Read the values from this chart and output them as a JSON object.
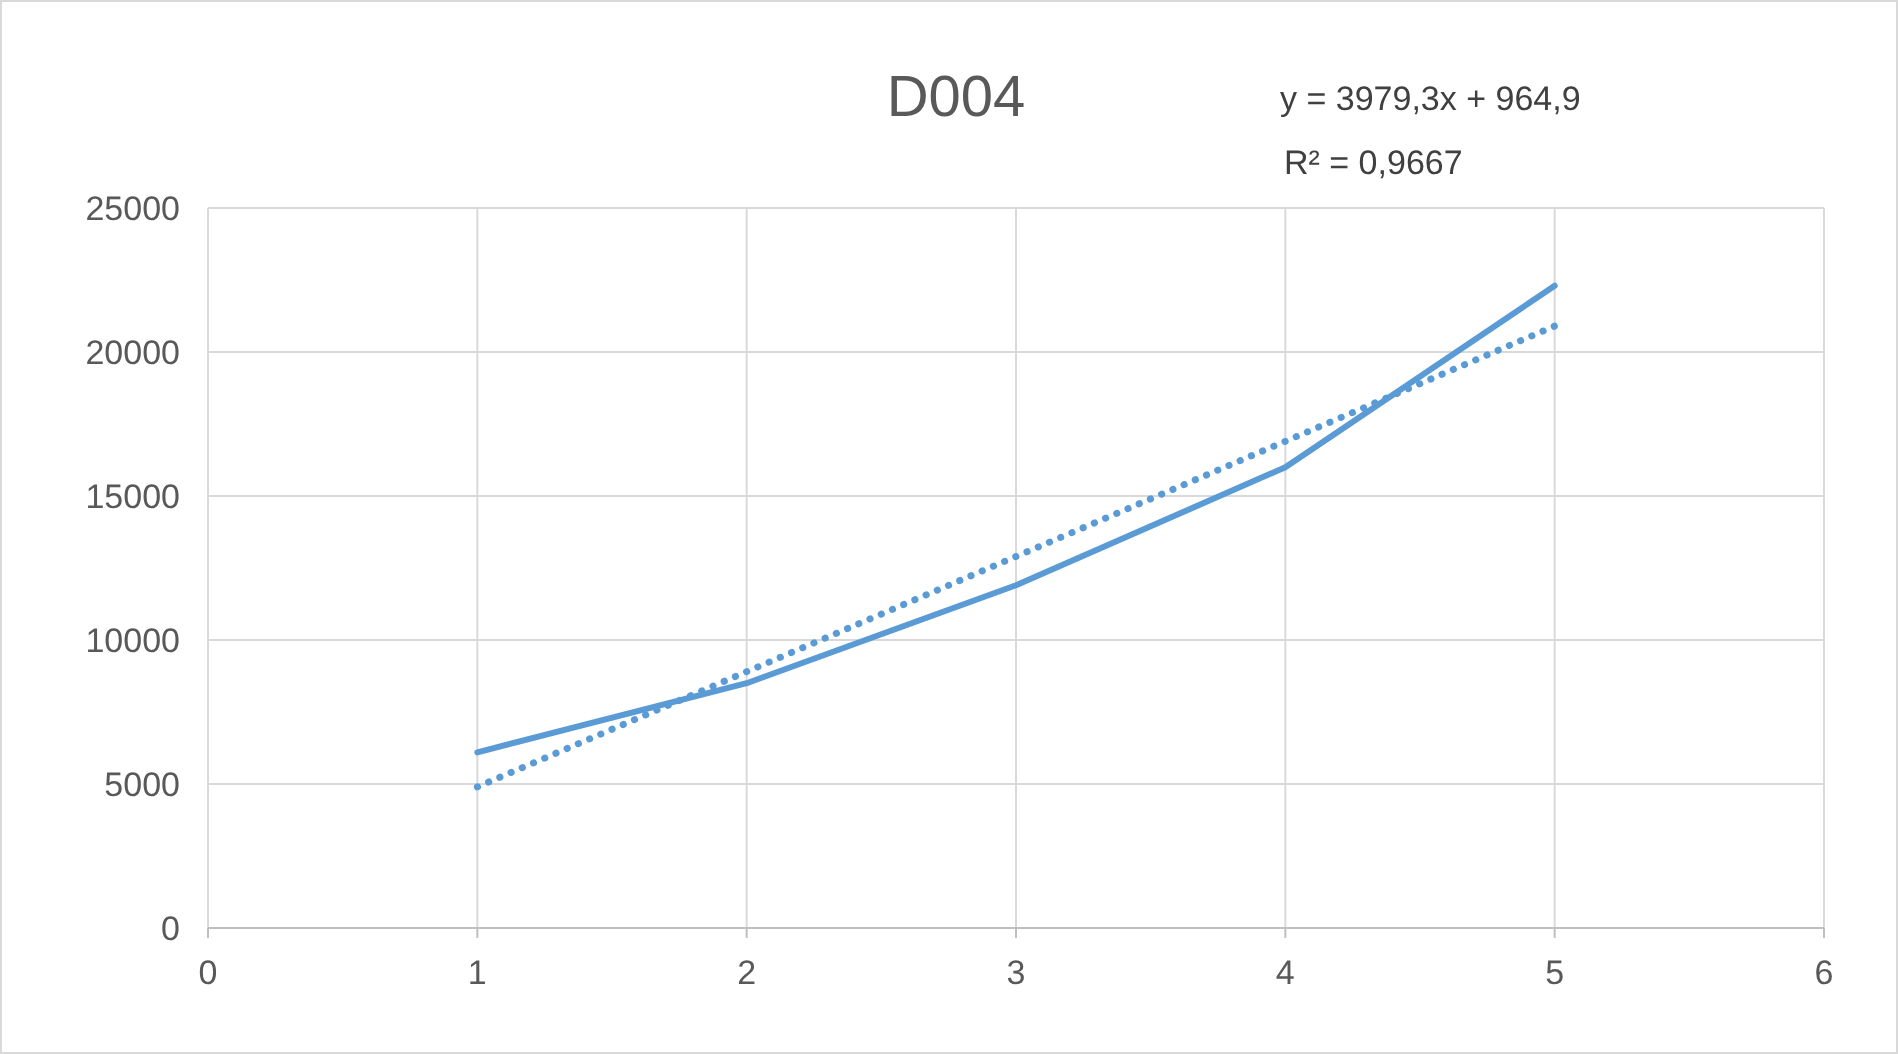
{
  "chart_data": {
    "type": "line",
    "title": "D004",
    "x": [
      1,
      2,
      3,
      4,
      5
    ],
    "series": [
      {
        "color": "#5b9bd5",
        "values": [
          6100,
          8500,
          11900,
          16000,
          22300
        ]
      },
      {
        "type": "line",
        "x": [
          1,
          5
        ],
        "values": [
          4900,
          20900
        ],
        "color": "#5b9bd5",
        "line_style": "dotted"
      }
    ],
    "xlim": [
      0,
      6
    ],
    "xticks": [
      0,
      1,
      2,
      3,
      4,
      5,
      6
    ],
    "ylim": [
      0,
      25000
    ],
    "yticks": [
      0,
      5000,
      10000,
      15000,
      20000,
      25000
    ],
    "grid": true,
    "line_style": "solid",
    "marker": "none",
    "annotations": [
      "y = 3979,3x + 964,9",
      "R² = 0,9667"
    ]
  }
}
